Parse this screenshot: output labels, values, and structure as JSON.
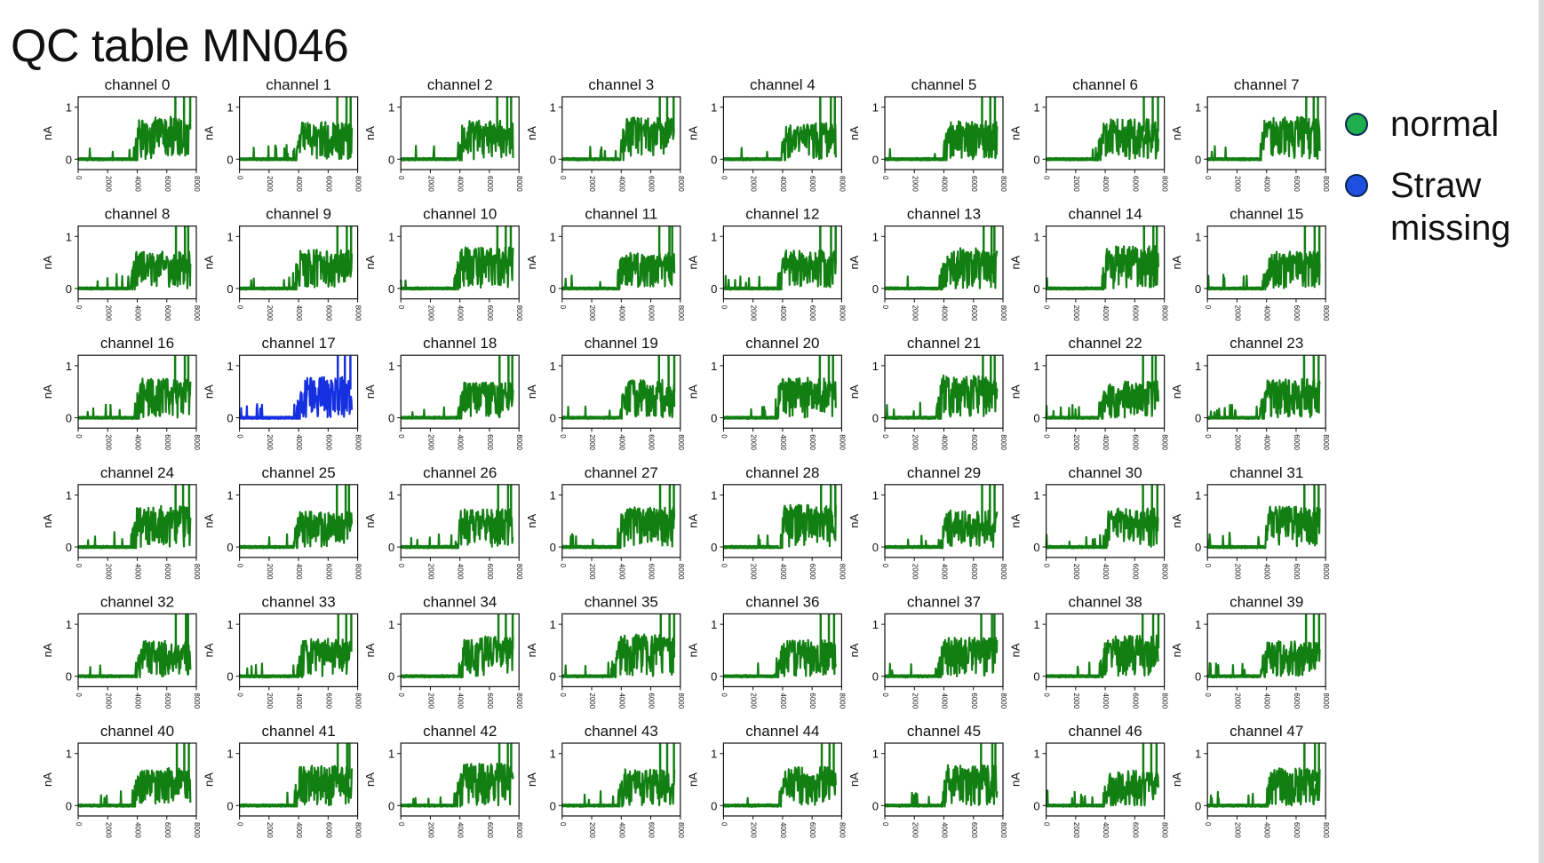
{
  "title": "QC table MN046",
  "legend": {
    "items": [
      {
        "label_lines": [
          "normal"
        ],
        "color": "#1fae4b"
      },
      {
        "label_lines": [
          "Straw",
          "missing"
        ],
        "color": "#1f4fe0"
      }
    ]
  },
  "status_colors": {
    "normal": "#127f12",
    "straw_missing": "#1530e0"
  },
  "chart_data": {
    "type": "line",
    "layout": "small-multiples",
    "rows": 6,
    "cols": 8,
    "ylabel": "nA",
    "xlabel": "",
    "xlim": [
      0,
      8000
    ],
    "ylim": [
      -0.2,
      1.2
    ],
    "x_ticks": [
      "0",
      "2000",
      "4000",
      "6000",
      "8000"
    ],
    "y_ticks": [
      "0",
      "1"
    ],
    "grid": false,
    "legend_placement": "right",
    "series_shape": {
      "baseline_nA": 0.0,
      "plateau_nA": 0.5,
      "rise_x": 3700,
      "end_x": 7600,
      "spike_x": [
        6600,
        7200,
        7500
      ]
    },
    "panels": [
      {
        "title": "channel 0",
        "status": "normal"
      },
      {
        "title": "channel 1",
        "status": "normal"
      },
      {
        "title": "channel 2",
        "status": "normal"
      },
      {
        "title": "channel 3",
        "status": "normal"
      },
      {
        "title": "channel 4",
        "status": "normal"
      },
      {
        "title": "channel 5",
        "status": "normal"
      },
      {
        "title": "channel 6",
        "status": "normal"
      },
      {
        "title": "channel 7",
        "status": "normal"
      },
      {
        "title": "channel 8",
        "status": "normal"
      },
      {
        "title": "channel 9",
        "status": "normal"
      },
      {
        "title": "channel 10",
        "status": "normal"
      },
      {
        "title": "channel 11",
        "status": "normal"
      },
      {
        "title": "channel 12",
        "status": "normal"
      },
      {
        "title": "channel 13",
        "status": "normal"
      },
      {
        "title": "channel 14",
        "status": "normal"
      },
      {
        "title": "channel 15",
        "status": "normal"
      },
      {
        "title": "channel 16",
        "status": "normal"
      },
      {
        "title": "channel 17",
        "status": "straw_missing"
      },
      {
        "title": "channel 18",
        "status": "normal"
      },
      {
        "title": "channel 19",
        "status": "normal"
      },
      {
        "title": "channel 20",
        "status": "normal"
      },
      {
        "title": "channel 21",
        "status": "normal"
      },
      {
        "title": "channel 22",
        "status": "normal"
      },
      {
        "title": "channel 23",
        "status": "normal"
      },
      {
        "title": "channel 24",
        "status": "normal"
      },
      {
        "title": "channel 25",
        "status": "normal"
      },
      {
        "title": "channel 26",
        "status": "normal"
      },
      {
        "title": "channel 27",
        "status": "normal"
      },
      {
        "title": "channel 28",
        "status": "normal"
      },
      {
        "title": "channel 29",
        "status": "normal"
      },
      {
        "title": "channel 30",
        "status": "normal"
      },
      {
        "title": "channel 31",
        "status": "normal"
      },
      {
        "title": "channel 32",
        "status": "normal"
      },
      {
        "title": "channel 33",
        "status": "normal"
      },
      {
        "title": "channel 34",
        "status": "normal"
      },
      {
        "title": "channel 35",
        "status": "normal"
      },
      {
        "title": "channel 36",
        "status": "normal"
      },
      {
        "title": "channel 37",
        "status": "normal"
      },
      {
        "title": "channel 38",
        "status": "normal"
      },
      {
        "title": "channel 39",
        "status": "normal"
      },
      {
        "title": "channel 40",
        "status": "normal"
      },
      {
        "title": "channel 41",
        "status": "normal"
      },
      {
        "title": "channel 42",
        "status": "normal"
      },
      {
        "title": "channel 43",
        "status": "normal"
      },
      {
        "title": "channel 44",
        "status": "normal"
      },
      {
        "title": "channel 45",
        "status": "normal"
      },
      {
        "title": "channel 46",
        "status": "normal"
      },
      {
        "title": "channel 47",
        "status": "normal"
      }
    ]
  }
}
